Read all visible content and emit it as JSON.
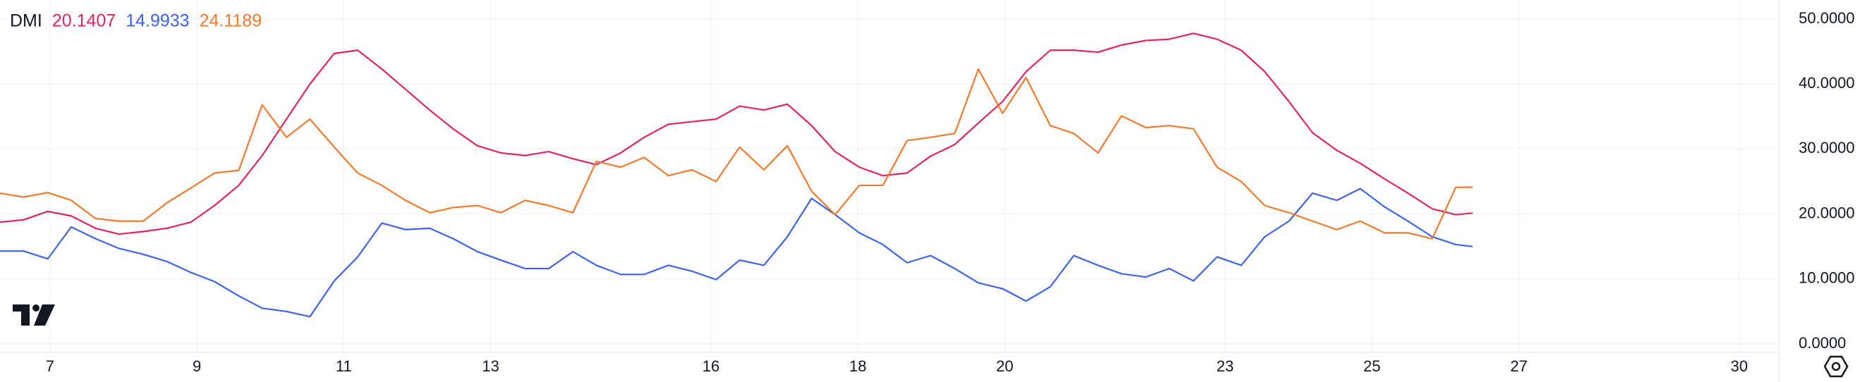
{
  "chart_data": {
    "type": "line",
    "title": "DMI",
    "x": [
      6.32,
      6.64,
      6.97,
      7.29,
      7.62,
      7.94,
      8.27,
      8.59,
      8.92,
      9.24,
      9.57,
      9.89,
      10.22,
      10.54,
      10.87,
      11.19,
      11.52,
      11.84,
      12.17,
      12.49,
      12.82,
      13.14,
      13.47,
      13.79,
      14.12,
      14.44,
      14.77,
      15.09,
      15.42,
      15.74,
      16.07,
      16.39,
      16.72,
      17.04,
      17.37,
      17.69,
      18.02,
      18.34,
      18.67,
      18.99,
      19.32,
      19.64,
      19.97,
      20.29,
      20.62,
      20.94,
      21.27,
      21.59,
      21.92,
      22.24,
      22.57,
      22.89,
      23.22,
      23.54,
      23.87,
      24.19,
      24.52,
      24.84,
      25.17,
      25.49,
      25.82,
      26.14,
      26.37
    ],
    "series": [
      {
        "color": "#e0245e",
        "values": [
          18.75,
          19.1,
          20.4,
          19.7,
          17.8,
          16.9,
          17.3,
          17.8,
          18.75,
          21.3,
          24.4,
          29,
          34.6,
          40,
          44.7,
          45.2,
          42.3,
          39.2,
          36,
          33.1,
          30.5,
          29.4,
          29,
          29.6,
          28.5,
          27.6,
          29.4,
          31.8,
          33.8,
          34.2,
          34.6,
          36.6,
          36,
          36.9,
          33.6,
          29.6,
          27.2,
          25.9,
          26.3,
          28.9,
          30.7,
          34,
          37.3,
          41.9,
          45.2,
          45.2,
          44.9,
          46,
          46.7,
          46.9,
          47.8,
          46.9,
          45.2,
          41.9,
          37.3,
          32.5,
          29.8,
          27.8,
          25.4,
          23.2,
          20.8,
          19.9,
          20.1407
        ]
      },
      {
        "color": "#3d63e8",
        "values": [
          14.3,
          14.3,
          13.1,
          18,
          16.2,
          14.7,
          13.8,
          12.7,
          11,
          9.6,
          7.4,
          5.5,
          5,
          4.2,
          9.7,
          13.4,
          18.6,
          17.6,
          17.8,
          16.2,
          14.2,
          12.9,
          11.6,
          11.6,
          14.2,
          12.1,
          10.7,
          10.7,
          12.1,
          11.2,
          9.9,
          12.9,
          12.1,
          16.5,
          22.4,
          19.9,
          17.1,
          15.3,
          12.5,
          13.6,
          11.6,
          9.4,
          8.5,
          6.6,
          8.8,
          13.6,
          12.1,
          10.8,
          10.3,
          11.6,
          9.7,
          13.4,
          12.1,
          16.5,
          18.9,
          23.2,
          22.1,
          23.9,
          21.1,
          18.9,
          16.5,
          15.3,
          14.9933
        ]
      },
      {
        "color": "#f27a2c",
        "values": [
          23.2,
          22.6,
          23.3,
          22.1,
          19.3,
          18.9,
          18.9,
          21.7,
          24,
          26.3,
          26.7,
          36.8,
          31.8,
          34.6,
          30.3,
          26.3,
          24.4,
          22.1,
          20.2,
          21,
          21.3,
          20.2,
          22.1,
          21.3,
          20.2,
          28.1,
          27.2,
          28.7,
          25.9,
          26.8,
          25,
          30.3,
          26.8,
          30.5,
          23.5,
          19.9,
          24.4,
          24.4,
          31.3,
          31.8,
          32.4,
          42.3,
          35.5,
          41,
          33.6,
          32.4,
          29.4,
          35.1,
          33.3,
          33.6,
          33.1,
          27.2,
          25,
          21.3,
          20.2,
          18.9,
          17.6,
          18.9,
          17.1,
          17.1,
          16.2,
          24.1,
          24.1189
        ]
      }
    ],
    "xlim": [
      6.32,
      30.54
    ],
    "xticks": [
      7,
      9,
      11,
      13,
      16,
      18,
      20,
      23,
      25,
      27,
      30
    ],
    "ylim": [
      -1.3,
      52.93
    ],
    "yticks": [
      {
        "value": 0,
        "label": "0.0000"
      },
      {
        "value": 10,
        "label": "10.0000"
      },
      {
        "value": 20,
        "label": "20.0000"
      },
      {
        "value": 30,
        "label": "30.0000"
      },
      {
        "value": 40,
        "label": "40.0000"
      },
      {
        "value": 50,
        "label": "50.0000"
      }
    ],
    "grid": true
  }
}
